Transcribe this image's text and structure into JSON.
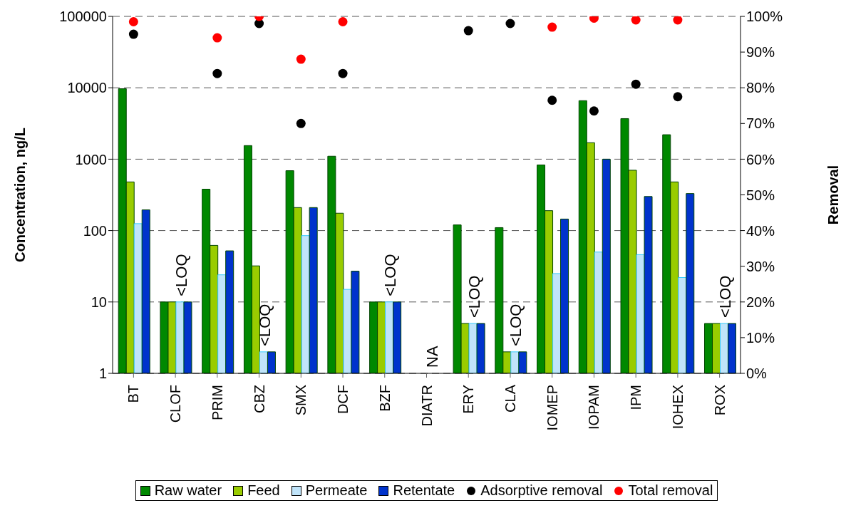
{
  "chart_data": {
    "type": "bar",
    "ylabel": "Concentration, ng/L",
    "y2label": "Removal",
    "categories": [
      "BT",
      "CLOF",
      "PRIM",
      "CBZ",
      "SMX",
      "DCF",
      "BZF",
      "DIATR",
      "ERY",
      "CLA",
      "IOMEP",
      "IOPAM",
      "IPM",
      "IOHEX",
      "ROX"
    ],
    "series": [
      {
        "name": "Raw water",
        "color": "#008800",
        "values": [
          9700,
          10,
          380,
          1550,
          690,
          1100,
          10,
          null,
          120,
          110,
          830,
          6600,
          3700,
          2200,
          5
        ]
      },
      {
        "name": "Feed",
        "color": "#99cc00",
        "values": [
          480,
          10,
          62,
          32,
          210,
          175,
          10,
          null,
          5,
          2,
          190,
          1700,
          700,
          480,
          5
        ]
      },
      {
        "name": "Permeate",
        "color": "#c0e4fa",
        "values": [
          125,
          10,
          24,
          2,
          85,
          15,
          10,
          null,
          5,
          2,
          25,
          50,
          46,
          22,
          5
        ]
      },
      {
        "name": "Retentate",
        "color": "#0033cc",
        "values": [
          195,
          10,
          52,
          2,
          210,
          27,
          10,
          null,
          5,
          2,
          145,
          1000,
          300,
          330,
          5
        ]
      },
      {
        "name": "Adsorptive removal",
        "type": "scatter",
        "axis": "y2",
        "color": "#000000",
        "values": [
          95,
          null,
          84,
          98,
          70,
          84,
          null,
          null,
          96,
          98,
          76.5,
          73.5,
          81,
          77.5,
          null
        ]
      },
      {
        "name": "Total removal",
        "type": "scatter",
        "axis": "y2",
        "color": "#ff0000",
        "values": [
          98.5,
          null,
          94,
          100,
          88,
          98.5,
          null,
          null,
          null,
          null,
          97,
          99.5,
          99,
          99,
          null
        ]
      }
    ],
    "log": "y",
    "ylim": [
      1,
      100000
    ],
    "yticks": [
      1,
      10,
      100,
      1000,
      10000,
      100000
    ],
    "y2lim": [
      0,
      100
    ],
    "y2ticks": [
      {
        "value": 0,
        "label": "0%"
      },
      {
        "value": 10,
        "label": "10%"
      },
      {
        "value": 20,
        "label": "20%"
      },
      {
        "value": 30,
        "label": "30%"
      },
      {
        "value": 40,
        "label": "40%"
      },
      {
        "value": 50,
        "label": "50%"
      },
      {
        "value": 60,
        "label": "60%"
      },
      {
        "value": 70,
        "label": "70%"
      },
      {
        "value": 80,
        "label": "80%"
      },
      {
        "value": 90,
        "label": "90%"
      },
      {
        "value": 100,
        "label": "100%"
      }
    ],
    "grid": "y",
    "legend": "bottom",
    "marker": "circle",
    "annotations": [
      {
        "text": "<LOQ",
        "x": "CLOF",
        "y": 10
      },
      {
        "text": "<LOQ",
        "x": "CBZ",
        "y": 2
      },
      {
        "text": "<LOQ",
        "x": "BZF",
        "y": 10
      },
      "NA",
      {
        "text": "<LOQ",
        "x": "ERY",
        "y": 5
      },
      {
        "text": "<LOQ",
        "x": "CLA",
        "y": 2
      },
      {
        "text": "<LOQ",
        "x": "ROX",
        "y": 5
      }
    ]
  }
}
